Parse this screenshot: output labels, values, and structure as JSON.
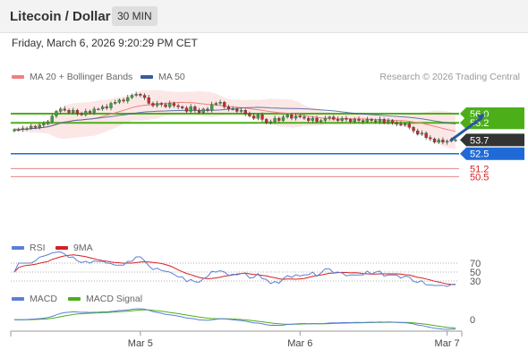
{
  "header": {
    "title": "Litecoin / Dollar",
    "timeframe": "30 MIN",
    "datetime": "Friday, March 6, 2026 9:20:29 PM CET",
    "credit": "Research © 2026 Trading Central"
  },
  "legends": {
    "ma20": {
      "label": "MA 20 + Bollinger Bands",
      "color": "#f08080"
    },
    "ma50": {
      "label": "MA 50",
      "color": "#3a5a9a"
    },
    "rsi": {
      "label": "RSI",
      "color": "#5b7fd6"
    },
    "rsi_ma": {
      "label": "9MA",
      "color": "#d62020"
    },
    "macd": {
      "label": "MACD",
      "color": "#5b7fd6"
    },
    "macd_signal": {
      "label": "MACD Signal",
      "color": "#4caf1a"
    }
  },
  "chart_data": {
    "type": "candlestick",
    "price_ylim": [
      49.9,
      58.5
    ],
    "x_tick_labels": [
      "Mar 5",
      "Mar 6",
      "Mar 7"
    ],
    "x_tick_index": [
      30,
      68,
      103
    ],
    "levels": [
      {
        "value": 56.0,
        "label": "56.0",
        "kind": "resistance",
        "color": "#4caf1a"
      },
      {
        "value": 55.2,
        "label": "55.2",
        "kind": "resistance",
        "color": "#4caf1a"
      },
      {
        "value": 53.7,
        "label": "53.7",
        "kind": "last",
        "color": "#333333"
      },
      {
        "value": 52.5,
        "label": "52.5",
        "kind": "pivot",
        "color": "#1f6ad6"
      },
      {
        "value": 51.2,
        "label": "51.2",
        "kind": "support",
        "color": "#d62020"
      },
      {
        "value": 50.5,
        "label": "50.5",
        "kind": "support",
        "color": "#d62020"
      }
    ],
    "arrow": {
      "from_index": 104,
      "from_value": 53.7,
      "to_index": 112,
      "to_value": 56.0
    },
    "closes": [
      54.6,
      54.6,
      54.7,
      54.7,
      54.9,
      54.8,
      55.0,
      55.1,
      55.3,
      55.8,
      56.2,
      56.4,
      56.3,
      56.1,
      56.3,
      56.0,
      55.9,
      56.2,
      56.1,
      56.4,
      56.4,
      56.6,
      56.5,
      56.9,
      57.0,
      57.2,
      57.1,
      57.4,
      57.6,
      57.7,
      57.6,
      57.4,
      56.9,
      56.7,
      56.9,
      56.8,
      56.6,
      56.9,
      56.7,
      56.6,
      56.5,
      56.2,
      56.6,
      56.3,
      56.1,
      56.4,
      56.3,
      56.8,
      56.9,
      57.0,
      56.6,
      56.4,
      56.4,
      56.2,
      56.3,
      56.0,
      55.8,
      55.6,
      55.9,
      55.5,
      55.2,
      55.3,
      55.6,
      55.4,
      55.7,
      55.9,
      55.6,
      55.8,
      55.7,
      55.6,
      55.4,
      55.6,
      55.3,
      55.4,
      55.6,
      55.7,
      55.5,
      55.4,
      55.6,
      55.5,
      55.3,
      55.5,
      55.4,
      55.3,
      55.5,
      55.4,
      55.3,
      55.5,
      55.2,
      55.4,
      55.2,
      55.1,
      55.0,
      55.1,
      54.8,
      54.5,
      54.2,
      54.3,
      53.9,
      53.8,
      53.5,
      53.7,
      53.5,
      53.6,
      53.7,
      53.7
    ],
    "rsi_ylim": [
      20,
      80
    ],
    "rsi_levels": [
      70,
      50,
      30
    ],
    "macd_zero_label": "0"
  }
}
